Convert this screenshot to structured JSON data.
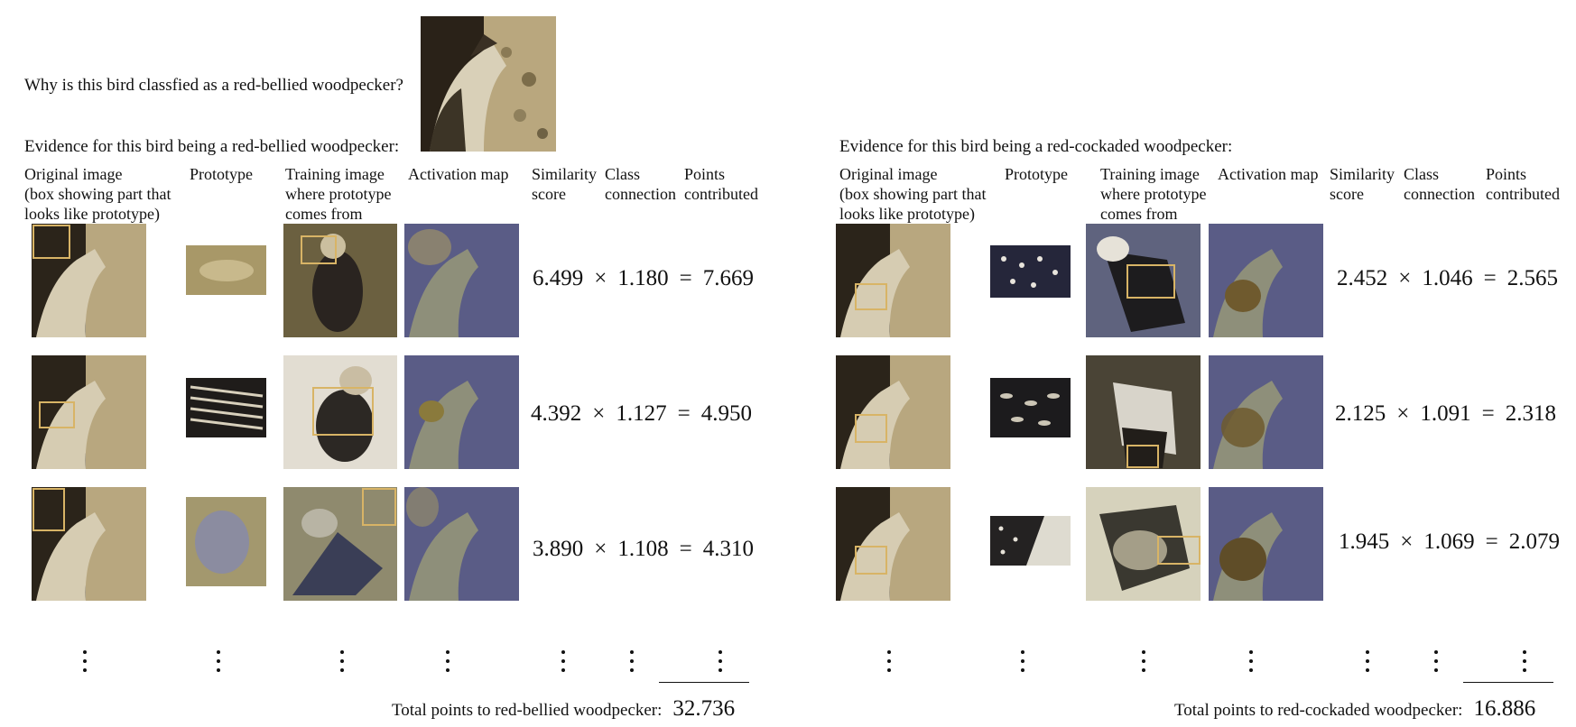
{
  "question": "Why is this bird classfied as a red-bellied woodpecker?",
  "columns": {
    "original": "Original image\n(box showing part that\nlooks like prototype)",
    "prototype": "Prototype",
    "training": "Training image\nwhere prototype\ncomes from",
    "activation": "Activation map",
    "similarity": "Similarity\nscore",
    "connection": "Class\nconnection",
    "points": "Points\ncontributed"
  },
  "operators": {
    "times": "×",
    "equals": "="
  },
  "panels": [
    {
      "evidence": "Evidence for this bird being a red-bellied woodpecker:",
      "rows": [
        {
          "similarity": "6.499",
          "connection": "1.180",
          "points": "7.669"
        },
        {
          "similarity": "4.392",
          "connection": "1.127",
          "points": "4.950"
        },
        {
          "similarity": "3.890",
          "connection": "1.108",
          "points": "4.310"
        }
      ],
      "total_label": "Total points to red-bellied woodpecker:",
      "total_value": "32.736"
    },
    {
      "evidence": "Evidence for this bird being a red-cockaded woodpecker:",
      "rows": [
        {
          "similarity": "2.452",
          "connection": "1.046",
          "points": "2.565"
        },
        {
          "similarity": "2.125",
          "connection": "1.091",
          "points": "2.318"
        },
        {
          "similarity": "1.945",
          "connection": "1.069",
          "points": "2.079"
        }
      ],
      "total_label": "Total points to red-cockaded woodpecker:",
      "total_value": "16.886"
    }
  ]
}
